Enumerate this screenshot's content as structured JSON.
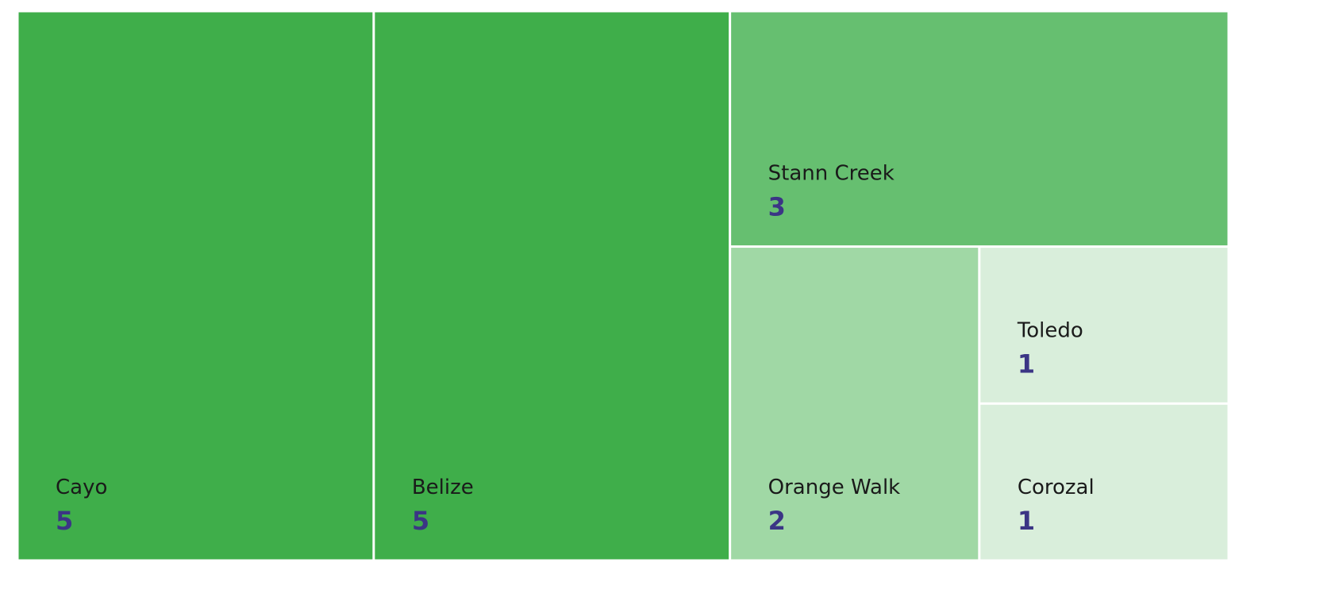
{
  "chart_data": {
    "type": "treemap",
    "categories": [
      "Cayo",
      "Belize",
      "Stann Creek",
      "Orange Walk",
      "Toledo",
      "Corozal"
    ],
    "values": [
      5,
      5,
      3,
      2,
      1,
      1
    ],
    "colors": [
      "#3fae4a",
      "#3fae4a",
      "#66bf70",
      "#a0d8a5",
      "#d9eedb",
      "#d9eedb"
    ]
  }
}
